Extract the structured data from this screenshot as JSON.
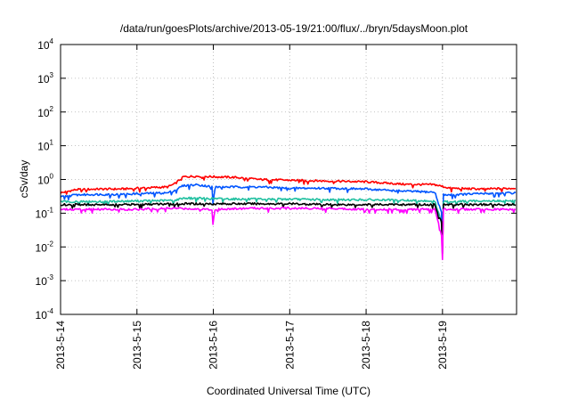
{
  "chart_data": {
    "type": "line",
    "title": "/data/run/goesPlots/archive/2013-05-19/21:00/flux/../bryn/5daysMoon.plot",
    "xlabel": "Coordinated Universal Time (UTC)",
    "ylabel": "cSv/day",
    "x_unit": "days",
    "xlim": [
      "2013-05-14",
      "2013-05-19 23:00"
    ],
    "x_ticks": [
      "2013-5-14",
      "2013-5-15",
      "2013-5-16",
      "2013-5-17",
      "2013-5-18",
      "2013-5-19"
    ],
    "ylim": [
      0.0001,
      10000
    ],
    "y_scale": "log",
    "y_ticks": [
      {
        "base": "10",
        "exp": "-4",
        "value": 0.0001
      },
      {
        "base": "10",
        "exp": "-3",
        "value": 0.001
      },
      {
        "base": "10",
        "exp": "-2",
        "value": 0.01
      },
      {
        "base": "10",
        "exp": "-1",
        "value": 0.1
      },
      {
        "base": "10",
        "exp": "0",
        "value": 1
      },
      {
        "base": "10",
        "exp": "1",
        "value": 10
      },
      {
        "base": "10",
        "exp": "2",
        "value": 100
      },
      {
        "base": "10",
        "exp": "3",
        "value": 1000
      },
      {
        "base": "10",
        "exp": "4",
        "value": 10000
      }
    ],
    "grid": true,
    "legend": "none",
    "series": [
      {
        "color": "#ff0000",
        "x": [
          0,
          0.2,
          0.5,
          0.8,
          1.0,
          1.4,
          1.5,
          1.6,
          1.8,
          2.0,
          2.3,
          2.6,
          3.0,
          3.5,
          4.0,
          4.5,
          4.9,
          5.1,
          5.5,
          5.95
        ],
        "y": [
          0.4,
          0.5,
          0.52,
          0.52,
          0.55,
          0.6,
          0.75,
          1.2,
          1.25,
          1.2,
          1.15,
          1.0,
          0.95,
          0.9,
          0.85,
          0.72,
          0.7,
          0.55,
          0.52,
          0.55
        ]
      },
      {
        "color": "#0055ff",
        "x": [
          0,
          0.2,
          0.5,
          0.8,
          1.0,
          1.4,
          1.5,
          1.6,
          1.8,
          1.99,
          2.0,
          2.01,
          2.3,
          2.6,
          3.0,
          3.5,
          4.0,
          4.5,
          4.9,
          4.99,
          5.0,
          5.01,
          5.1,
          5.5,
          5.95
        ],
        "y": [
          0.3,
          0.35,
          0.36,
          0.36,
          0.38,
          0.4,
          0.48,
          0.65,
          0.7,
          0.6,
          0.05,
          0.6,
          0.6,
          0.6,
          0.55,
          0.55,
          0.52,
          0.45,
          0.42,
          0.1,
          0.01,
          0.35,
          0.35,
          0.38,
          0.4
        ]
      },
      {
        "color": "#20c0a0",
        "x": [
          0,
          0.5,
          1.0,
          1.5,
          1.6,
          2.0,
          2.5,
          3.0,
          3.5,
          4.0,
          4.5,
          4.9,
          4.99,
          5.0,
          5.01,
          5.5,
          5.95
        ],
        "y": [
          0.22,
          0.22,
          0.23,
          0.24,
          0.28,
          0.27,
          0.26,
          0.26,
          0.25,
          0.25,
          0.24,
          0.23,
          0.05,
          0.008,
          0.22,
          0.23,
          0.23
        ]
      },
      {
        "color": "#000000",
        "x": [
          0,
          0.5,
          1.0,
          1.5,
          2.0,
          2.5,
          3.0,
          3.5,
          4.0,
          4.5,
          4.9,
          4.99,
          5.0,
          5.01,
          5.5,
          5.95
        ],
        "y": [
          0.18,
          0.18,
          0.18,
          0.19,
          0.19,
          0.19,
          0.19,
          0.18,
          0.18,
          0.18,
          0.18,
          0.05,
          0.006,
          0.18,
          0.18,
          0.18
        ]
      },
      {
        "color": "#ff00ff",
        "x": [
          0,
          0.5,
          1.0,
          1.5,
          1.99,
          2.0,
          2.01,
          2.5,
          3.0,
          3.5,
          4.0,
          4.5,
          4.9,
          4.99,
          5.0,
          5.01,
          5.5,
          5.95
        ],
        "y": [
          0.13,
          0.13,
          0.13,
          0.14,
          0.13,
          0.014,
          0.13,
          0.14,
          0.14,
          0.14,
          0.13,
          0.13,
          0.13,
          0.02,
          0.004,
          0.13,
          0.13,
          0.13
        ]
      }
    ]
  }
}
